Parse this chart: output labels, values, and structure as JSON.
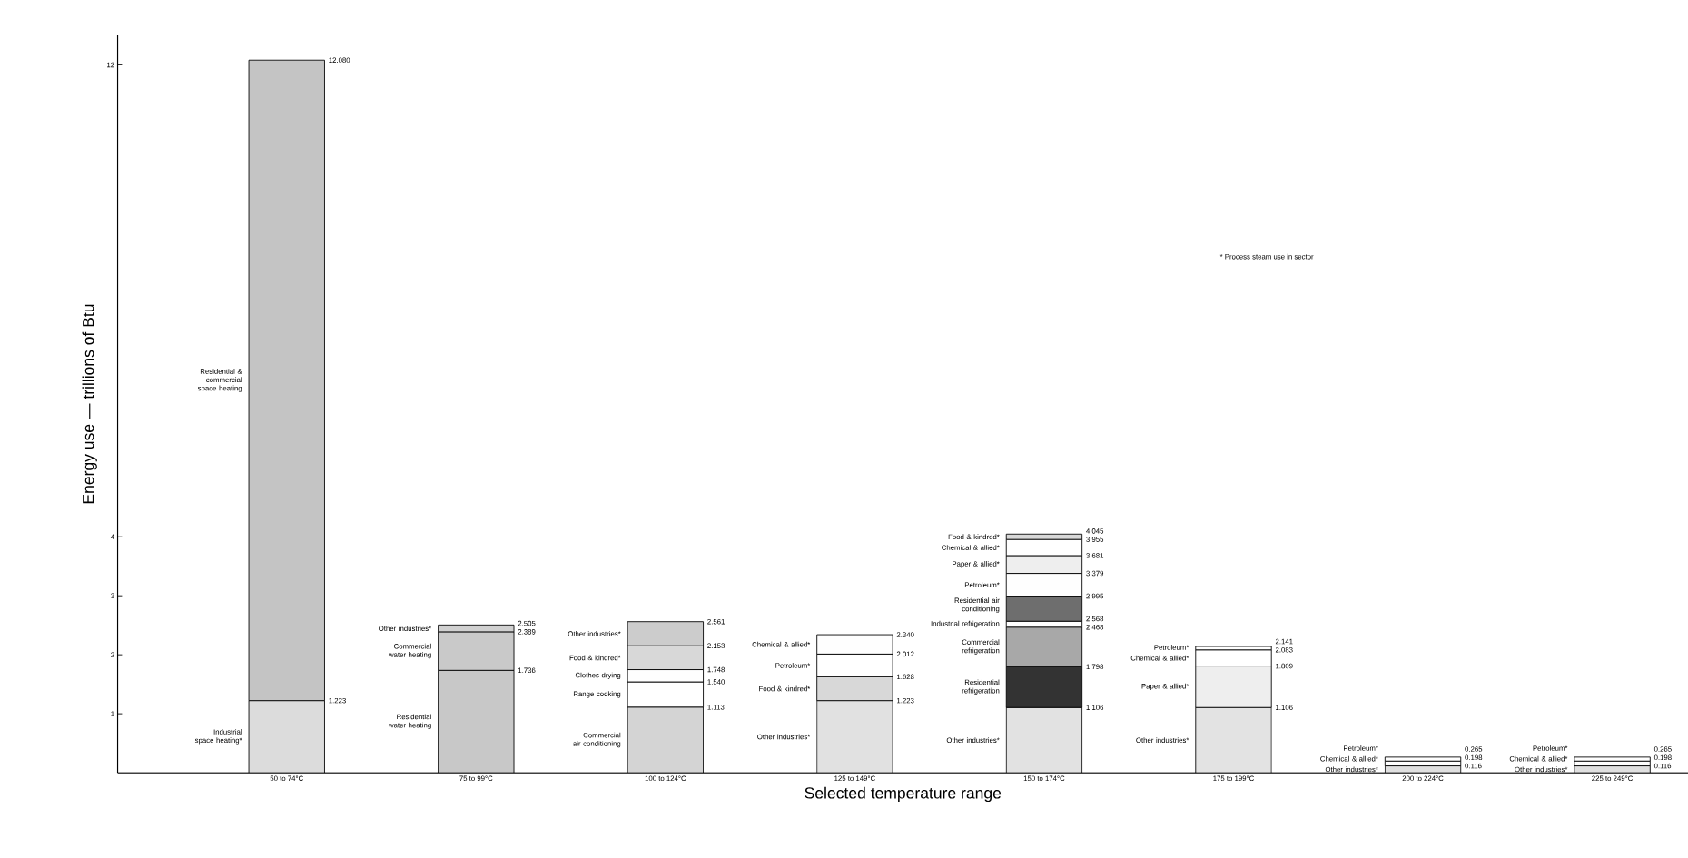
{
  "chart_data": {
    "type": "bar",
    "stacked": true,
    "categories": [
      "50 to 74°C",
      "75 to 99°C",
      "100 to 124°C",
      "125 to 149°C",
      "150 to 174°C",
      "175 to 199°C",
      "200 to 224°C",
      "225 to 249°C"
    ],
    "series": [
      {
        "name": "Industrial space heating*",
        "color": "#dcdcdc",
        "values": [
          1.223,
          null,
          null,
          null,
          null,
          null,
          null,
          null
        ]
      },
      {
        "name": "Residential & commercial space heating",
        "color": "#c4c4c4",
        "values": [
          10.857,
          null,
          null,
          null,
          null,
          null,
          null,
          null
        ]
      },
      {
        "name": "Residential water heating",
        "color": "#c8c8c8",
        "values": [
          null,
          1.736,
          null,
          null,
          null,
          null,
          null,
          null
        ]
      },
      {
        "name": "Commercial water heating",
        "color": "#c9c9c9",
        "values": [
          null,
          0.653,
          null,
          null,
          null,
          null,
          null,
          null
        ]
      },
      {
        "name": "Other industries*",
        "color": "#d0d0d0",
        "values": [
          null,
          0.116,
          null,
          null,
          null,
          null,
          null,
          null
        ]
      },
      {
        "name": "Commercial air conditioning",
        "color": "#d4d4d4",
        "values": [
          null,
          null,
          1.113,
          null,
          null,
          null,
          null,
          null
        ]
      },
      {
        "name": "Range cooking",
        "color": "#ffffff",
        "values": [
          null,
          null,
          0.427,
          null,
          null,
          null,
          null,
          null
        ]
      },
      {
        "name": "Clothes drying",
        "color": "#fefefe",
        "values": [
          null,
          null,
          0.208,
          null,
          null,
          null,
          null,
          null
        ]
      },
      {
        "name": "Food & kindred*",
        "color": "#d8d8d8",
        "values": [
          null,
          null,
          0.405,
          null,
          null,
          null,
          null,
          null
        ]
      },
      {
        "name": "Other industries*",
        "color": "#cccccc",
        "values": [
          null,
          null,
          0.408,
          null,
          null,
          null,
          null,
          null
        ]
      },
      {
        "name": "Other industries*",
        "color": "#e1e1e1",
        "values": [
          null,
          null,
          null,
          1.223,
          null,
          null,
          null,
          null
        ]
      },
      {
        "name": "Food & kindred*",
        "color": "#d8d8d8",
        "values": [
          null,
          null,
          null,
          0.405,
          null,
          null,
          null,
          null
        ]
      },
      {
        "name": "Petroleum*",
        "color": "#ffffff",
        "values": [
          null,
          null,
          null,
          0.384,
          null,
          null,
          null,
          null
        ]
      },
      {
        "name": "Chemical & allied*",
        "color": "#fefefe",
        "values": [
          null,
          null,
          null,
          0.328,
          null,
          null,
          null,
          null
        ]
      },
      {
        "name": "Other industries*",
        "color": "#e2e2e2",
        "values": [
          null,
          null,
          null,
          null,
          1.106,
          null,
          null,
          null
        ]
      },
      {
        "name": "Residential refrigeration",
        "color": "#333333",
        "values": [
          null,
          null,
          null,
          null,
          0.692,
          null,
          null,
          null
        ]
      },
      {
        "name": "Commercial refrigeration",
        "color": "#a8a8a8",
        "values": [
          null,
          null,
          null,
          null,
          0.67,
          null,
          null,
          null
        ]
      },
      {
        "name": "Industrial refrigeration",
        "color": "#ffffff",
        "values": [
          null,
          null,
          null,
          null,
          0.1,
          null,
          null,
          null
        ]
      },
      {
        "name": "Residential air conditioning",
        "color": "#6e6e6e",
        "values": [
          null,
          null,
          null,
          null,
          0.427,
          null,
          null,
          null
        ]
      },
      {
        "name": "Petroleum*",
        "color": "#fefefe",
        "values": [
          null,
          null,
          null,
          null,
          0.384,
          null,
          null,
          null
        ]
      },
      {
        "name": "Paper & allied*",
        "color": "#eeeeee",
        "values": [
          null,
          null,
          null,
          null,
          0.302,
          null,
          null,
          null
        ]
      },
      {
        "name": "Chemical & allied*",
        "color": "#ffffff",
        "values": [
          null,
          null,
          null,
          null,
          0.274,
          null,
          null,
          null
        ]
      },
      {
        "name": "Food & kindred*",
        "color": "#d8d8d8",
        "values": [
          null,
          null,
          null,
          null,
          0.09,
          null,
          null,
          null
        ]
      },
      {
        "name": "Other industries*",
        "color": "#e3e3e3",
        "values": [
          null,
          null,
          null,
          null,
          null,
          1.106,
          null,
          null
        ]
      },
      {
        "name": "Paper & allied*",
        "color": "#eeeeee",
        "values": [
          null,
          null,
          null,
          null,
          null,
          0.703,
          null,
          null
        ]
      },
      {
        "name": "Chemical & allied*",
        "color": "#ffffff",
        "values": [
          null,
          null,
          null,
          null,
          null,
          0.274,
          null,
          null
        ]
      },
      {
        "name": "Petroleum*",
        "color": "#fefefe",
        "values": [
          null,
          null,
          null,
          null,
          null,
          0.058,
          null,
          null
        ]
      },
      {
        "name": "Other industries*",
        "color": "#e0e0e0",
        "values": [
          null,
          null,
          null,
          null,
          null,
          null,
          0.116,
          null
        ]
      },
      {
        "name": "Chemical & allied*",
        "color": "#ffffff",
        "values": [
          null,
          null,
          null,
          null,
          null,
          null,
          0.082,
          null
        ]
      },
      {
        "name": "Petroleum*",
        "color": "#fefefe",
        "values": [
          null,
          null,
          null,
          null,
          null,
          null,
          0.067,
          null
        ]
      },
      {
        "name": "Other industries*",
        "color": "#e0e0e0",
        "values": [
          null,
          null,
          null,
          null,
          null,
          null,
          null,
          0.116
        ]
      },
      {
        "name": "Chemical & allied*",
        "color": "#ffffff",
        "values": [
          null,
          null,
          null,
          null,
          null,
          null,
          null,
          0.082
        ]
      },
      {
        "name": "Petroleum*",
        "color": "#fefefe",
        "values": [
          null,
          null,
          null,
          null,
          null,
          null,
          null,
          0.067
        ]
      }
    ],
    "ylim": [
      0,
      12.5
    ],
    "yticks": [
      1,
      2,
      3,
      4,
      12
    ],
    "xlabel": "Selected temperature range",
    "ylabel": "Energy use — trillions of Btu",
    "annotations": [
      "* Process steam use in sector",
      "1.223",
      "12.080",
      "1.736",
      "2.389",
      "2.505",
      "1.113",
      "1.540",
      "1.748",
      "2.153",
      "2.561",
      "1.223",
      "1.628",
      "2.012",
      "2.340",
      "1.106",
      "1.798",
      "2.468",
      "2.568",
      "2.995",
      "3.379",
      "3.681",
      "3.955",
      "4.045",
      "1.106",
      "1.809",
      "2.083",
      "2.141",
      "0.116",
      "0.198",
      "0.265",
      "0.116",
      "0.198",
      "0.265"
    ]
  }
}
